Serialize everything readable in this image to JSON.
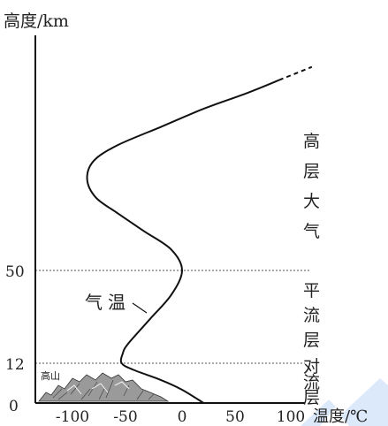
{
  "chart_data": {
    "type": "line",
    "ylabel": "高度/km",
    "xlabel": "温度/℃",
    "xlim": [
      -120,
      100
    ],
    "x_ticks": [
      "-100",
      "-50",
      "0",
      "50",
      "100"
    ],
    "x_tick_values": [
      -100,
      -50,
      0,
      50,
      100
    ],
    "y_ticks": [
      "0",
      "12",
      "50"
    ],
    "y_tick_values": [
      0,
      12,
      50
    ],
    "series": [
      {
        "name": "气温",
        "x": [
          20,
          0,
          -20,
          -45,
          -56,
          -55,
          -50,
          -30,
          -10,
          0,
          -10,
          -35,
          -60,
          -80,
          -88,
          -82,
          -60,
          -20,
          20,
          60,
          90
        ],
        "y": [
          0,
          4,
          7,
          10,
          12,
          16,
          20,
          30,
          40,
          50,
          58,
          65,
          72,
          78,
          85,
          92,
          98,
          105,
          112,
          118,
          123
        ]
      }
    ],
    "layers": [
      {
        "name": "高层大气",
        "chars": [
          "高",
          "层",
          "大",
          "气"
        ]
      },
      {
        "name": "平流层",
        "chars": [
          "平",
          "流",
          "层"
        ]
      },
      {
        "name": "对流层",
        "chars": [
          "对",
          "流",
          "层"
        ]
      }
    ],
    "mountain_label": "高山",
    "curve_label": "气温"
  }
}
